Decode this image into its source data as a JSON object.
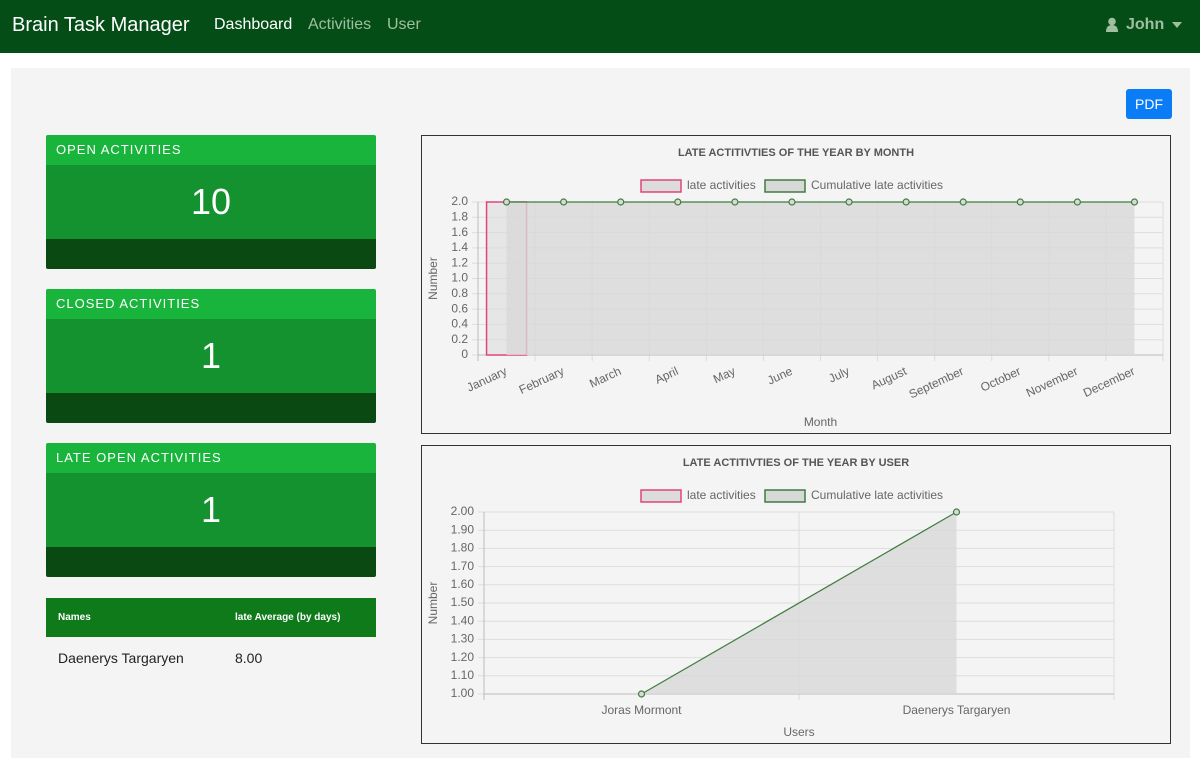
{
  "navbar": {
    "brand": "Brain Task Manager",
    "links": [
      "Dashboard",
      "Activities",
      "User"
    ],
    "user": "John"
  },
  "pdf_button": "PDF",
  "cards": [
    {
      "title": "OPEN ACTIVITIES",
      "value": 10
    },
    {
      "title": "CLOSED ACTIVITIES",
      "value": 1
    },
    {
      "title": "LATE OPEN ACTIVITIES",
      "value": 1
    }
  ],
  "table": {
    "headers": [
      "Names",
      "late Average (by days)"
    ],
    "rows": [
      [
        "Daenerys Targaryen",
        "8.00"
      ]
    ]
  },
  "chart_data": [
    {
      "type": "bar",
      "title": "LATE ACTITIVTIES OF THE YEAR BY MONTH",
      "x_label": "Month",
      "y_label": "Number",
      "categories": [
        "January",
        "February",
        "March",
        "April",
        "May",
        "June",
        "July",
        "August",
        "September",
        "October",
        "November",
        "December"
      ],
      "series": [
        {
          "name": "late activities",
          "type": "bar",
          "color": "#dcdcdc",
          "border_color": "#e0457b",
          "values": [
            2,
            0,
            0,
            0,
            0,
            0,
            0,
            0,
            0,
            0,
            0,
            0
          ]
        },
        {
          "name": "Cumulative late activities",
          "type": "line",
          "color": "#3e7d3e",
          "fill": "#d8d8d8",
          "values": [
            2,
            2,
            2,
            2,
            2,
            2,
            2,
            2,
            2,
            2,
            2,
            2
          ]
        }
      ],
      "ylim": [
        0,
        2
      ],
      "yticks": [
        0,
        0.2,
        0.4,
        0.6,
        0.8,
        {
          "value": 1,
          "label": "1.0"
        },
        1.2,
        1.4,
        1.6,
        1.8,
        {
          "value": 2,
          "label": "2.0"
        }
      ],
      "grid": true
    },
    {
      "type": "bar",
      "title": "LATE ACTITIVTIES OF THE YEAR BY USER",
      "x_label": "Users",
      "y_label": "Number",
      "categories": [
        "Joras Mormont",
        "Daenerys Targaryen"
      ],
      "series": [
        {
          "name": "late activities",
          "type": "bar",
          "color": "#dcdcdc",
          "border_color": "#e0457b",
          "values": [
            1,
            1
          ]
        },
        {
          "name": "Cumulative late activities",
          "type": "line",
          "color": "#3e7d3e",
          "fill": "#d8d8d8",
          "values": [
            1,
            2
          ]
        }
      ],
      "ylim": [
        1,
        2
      ],
      "yticks": [
        {
          "value": 1,
          "label": "1.00"
        },
        {
          "value": 1.1,
          "label": "1.10"
        },
        {
          "value": 1.2,
          "label": "1.20"
        },
        {
          "value": 1.3,
          "label": "1.30"
        },
        {
          "value": 1.4,
          "label": "1.40"
        },
        {
          "value": 1.5,
          "label": "1.50"
        },
        {
          "value": 1.6,
          "label": "1.60"
        },
        {
          "value": 1.7,
          "label": "1.70"
        },
        {
          "value": 1.8,
          "label": "1.80"
        },
        {
          "value": 1.9,
          "label": "1.90"
        },
        {
          "value": 2,
          "label": "2.00"
        }
      ],
      "grid": true
    }
  ]
}
